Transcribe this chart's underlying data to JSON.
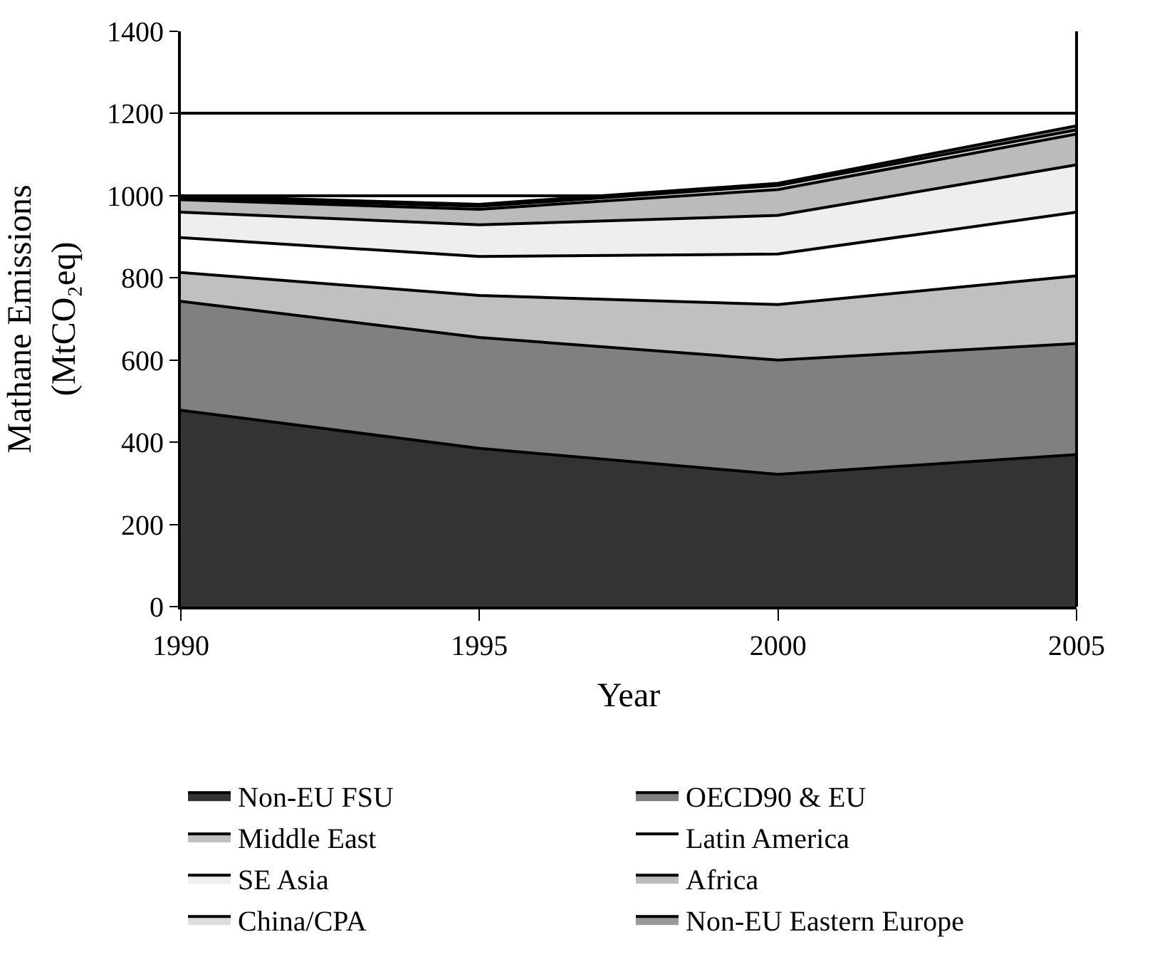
{
  "chart_data": {
    "type": "area",
    "stacked": true,
    "xlabel": "Year",
    "ylabel": "Mathane Emissions\n(MtCO₂eq)",
    "x": [
      1990,
      1995,
      2000,
      2005
    ],
    "xlim": [
      1990,
      2005
    ],
    "xticks": [
      1990,
      1995,
      2000,
      2005
    ],
    "ylim": [
      0,
      1400
    ],
    "yticks": [
      0,
      200,
      400,
      600,
      800,
      1000,
      1200,
      1400
    ],
    "grid": "y",
    "legend": "bottom",
    "series": [
      {
        "name": "Non-EU FSU",
        "color": "#333333",
        "values": [
          478,
          385,
          322,
          370
        ]
      },
      {
        "name": "OECD90 & EU",
        "color": "#808080",
        "values": [
          265,
          270,
          278,
          270
        ]
      },
      {
        "name": "Middle East",
        "color": "#c0c0c0",
        "values": [
          70,
          102,
          135,
          165
        ]
      },
      {
        "name": "Latin America",
        "color": "#ffffff",
        "values": [
          85,
          95,
          123,
          155
        ]
      },
      {
        "name": "SE Asia",
        "color": "#eeeeee",
        "values": [
          62,
          77,
          94,
          115
        ]
      },
      {
        "name": "Africa",
        "color": "#bbbbbb",
        "values": [
          30,
          38,
          63,
          75
        ]
      },
      {
        "name": "China/CPA",
        "color": "#dddddd",
        "values": [
          5,
          7,
          10,
          10
        ]
      },
      {
        "name": "Non-EU Eastern Europe",
        "color": "#999999",
        "values": [
          5,
          5,
          5,
          10
        ]
      }
    ]
  }
}
